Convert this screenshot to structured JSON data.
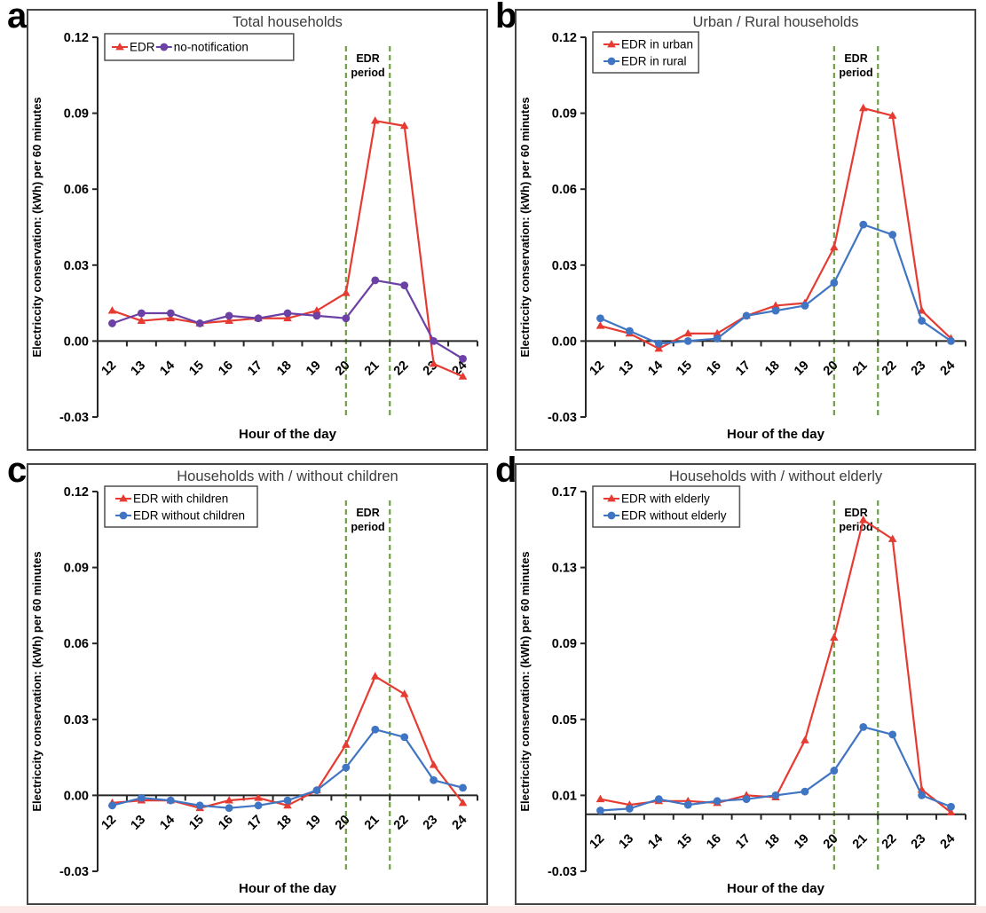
{
  "figure": {
    "background": "#ffffff",
    "bottom_strip_color": "#fbe8e7",
    "axis_color": "#262626",
    "title_color": "#3d3d3d",
    "border_color": "#454545"
  },
  "chart_data": [
    {
      "panel_label": "a",
      "type": "line",
      "title": "Total households",
      "xlabel": "Hour of the day",
      "ylabel": "Electriccity conservation: (kWh) per 60 minutes",
      "x": [
        12,
        13,
        14,
        15,
        16,
        17,
        18,
        19,
        20,
        21,
        22,
        23,
        24
      ],
      "y_ticks": [
        0.12,
        0.09,
        0.06,
        0.03,
        0.0,
        -0.03
      ],
      "y_tick_labels": [
        "0.12",
        "0.09",
        "0.06",
        "0.03",
        "0.00",
        "-0.03"
      ],
      "ylim": [
        -0.03,
        0.12
      ],
      "axis_cross": 0,
      "grid": false,
      "legend_layout": "horizontal",
      "annotation": {
        "line1": "EDR",
        "line2": "period",
        "x_from": 20,
        "x_to": 21.5,
        "line_color": "#6f9f48"
      },
      "series": [
        {
          "name": "EDR",
          "color": "#e63b32",
          "marker": "triangle",
          "values": [
            0.012,
            0.008,
            0.009,
            0.007,
            0.008,
            0.009,
            0.009,
            0.012,
            0.019,
            0.087,
            0.085,
            -0.009,
            -0.014
          ]
        },
        {
          "name": "no-notification",
          "color": "#6b41a5",
          "marker": "circle",
          "values": [
            0.007,
            0.011,
            0.011,
            0.007,
            0.01,
            0.009,
            0.011,
            0.01,
            0.009,
            0.024,
            0.022,
            0.0,
            -0.007
          ]
        }
      ]
    },
    {
      "panel_label": "b",
      "type": "line",
      "title": "Urban / Rural households",
      "xlabel": "Hour of the day",
      "ylabel": "Electriccity conservation: (kWh) per 60 minutes",
      "x": [
        12,
        13,
        14,
        15,
        16,
        17,
        18,
        19,
        20,
        21,
        22,
        23,
        24
      ],
      "y_ticks": [
        0.12,
        0.09,
        0.06,
        0.03,
        0.0,
        -0.03
      ],
      "y_tick_labels": [
        "0.12",
        "0.09",
        "0.06",
        "0.03",
        "0.00",
        "-0.03"
      ],
      "ylim": [
        -0.03,
        0.12
      ],
      "axis_cross": 0,
      "grid": false,
      "legend_layout": "vertical",
      "annotation": {
        "line1": "EDR",
        "line2": "period",
        "x_from": 20,
        "x_to": 21.5,
        "line_color": "#6f9f48"
      },
      "series": [
        {
          "name": "EDR in urban",
          "color": "#e63b32",
          "marker": "triangle",
          "values": [
            0.006,
            0.003,
            -0.003,
            0.003,
            0.003,
            0.01,
            0.014,
            0.015,
            0.037,
            0.092,
            0.089,
            0.012,
            0.001
          ]
        },
        {
          "name": "EDR in rural",
          "color": "#3f75c2",
          "marker": "circle",
          "values": [
            0.009,
            0.004,
            -0.001,
            0.0,
            0.001,
            0.01,
            0.012,
            0.014,
            0.023,
            0.046,
            0.042,
            0.008,
            0.0
          ]
        }
      ]
    },
    {
      "panel_label": "c",
      "type": "line",
      "title": "Households with / without children",
      "xlabel": "Hour of the day",
      "ylabel": "Electriccity conservation: (kWh) per 60 minutes",
      "x": [
        12,
        13,
        14,
        15,
        16,
        17,
        18,
        19,
        20,
        21,
        22,
        23,
        24
      ],
      "y_ticks": [
        0.12,
        0.09,
        0.06,
        0.03,
        0.0,
        -0.03
      ],
      "y_tick_labels": [
        "0.12",
        "0.09",
        "0.06",
        "0.03",
        "0.00",
        "-0.03"
      ],
      "ylim": [
        -0.03,
        0.12
      ],
      "axis_cross": 0,
      "grid": false,
      "legend_layout": "vertical",
      "annotation": {
        "line1": "EDR",
        "line2": "period",
        "x_from": 20,
        "x_to": 21.5,
        "line_color": "#6f9f48"
      },
      "series": [
        {
          "name": "EDR with children",
          "color": "#e63b32",
          "marker": "triangle",
          "values": [
            -0.003,
            -0.002,
            -0.002,
            -0.005,
            -0.002,
            -0.001,
            -0.004,
            0.002,
            0.02,
            0.047,
            0.04,
            0.012,
            -0.003
          ]
        },
        {
          "name": "EDR without children",
          "color": "#3f75c2",
          "marker": "circle",
          "values": [
            -0.004,
            -0.001,
            -0.002,
            -0.004,
            -0.005,
            -0.004,
            -0.002,
            0.002,
            0.011,
            0.026,
            0.023,
            0.006,
            0.003
          ]
        }
      ]
    },
    {
      "panel_label": "d",
      "type": "line",
      "title": "Households with / without elderly",
      "xlabel": "Hour of the day",
      "ylabel": "Electriccity conservation: (kWh) per 60 minutes",
      "x": [
        12,
        13,
        14,
        15,
        16,
        17,
        18,
        19,
        20,
        21,
        22,
        23,
        24
      ],
      "y_ticks": [
        0.17,
        0.13,
        0.09,
        0.05,
        0.01,
        -0.03
      ],
      "y_tick_labels": [
        "0.17",
        "0.13",
        "0.09",
        "0.05",
        "0.01",
        "-0.03"
      ],
      "ylim": [
        -0.03,
        0.17
      ],
      "axis_cross": 0,
      "grid": false,
      "legend_layout": "vertical",
      "annotation": {
        "line1": "EDR",
        "line2": "period",
        "x_from": 20,
        "x_to": 21.5,
        "line_color": "#6f9f48"
      },
      "series": [
        {
          "name": "EDR with elderly",
          "color": "#e63b32",
          "marker": "triangle",
          "values": [
            0.008,
            0.005,
            0.007,
            0.007,
            0.006,
            0.01,
            0.009,
            0.039,
            0.093,
            0.155,
            0.145,
            0.013,
            0.001
          ]
        },
        {
          "name": "EDR without elderly",
          "color": "#3f75c2",
          "marker": "circle",
          "values": [
            0.002,
            0.003,
            0.008,
            0.005,
            0.007,
            0.008,
            0.01,
            0.012,
            0.023,
            0.046,
            0.042,
            0.01,
            0.004
          ]
        }
      ]
    }
  ]
}
